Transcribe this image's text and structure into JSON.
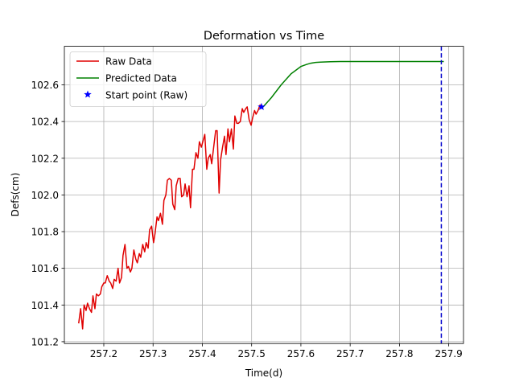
{
  "chart_data": {
    "type": "line",
    "title": "Deformation vs Time",
    "xlabel": "Time(d)",
    "ylabel": "Defs(cm)",
    "xlim": [
      257.12,
      257.93
    ],
    "ylim": [
      101.19,
      102.81
    ],
    "xticks": [
      257.2,
      257.3,
      257.4,
      257.5,
      257.6,
      257.7,
      257.8,
      257.9
    ],
    "xtick_labels": [
      "257.2",
      "257.3",
      "257.4",
      "257.5",
      "257.6",
      "257.7",
      "257.8",
      "257.9"
    ],
    "yticks": [
      101.2,
      101.4,
      101.6,
      101.8,
      102.0,
      102.2,
      102.4,
      102.6
    ],
    "ytick_labels": [
      "101.2",
      "101.4",
      "101.6",
      "101.8",
      "102.0",
      "102.2",
      "102.4",
      "102.6"
    ],
    "grid": true,
    "legend_position": "top-left",
    "series": [
      {
        "name": "Raw Data",
        "color": "#e00000",
        "style": "line",
        "x": [
          257.149,
          257.153,
          257.157,
          257.16,
          257.164,
          257.167,
          257.171,
          257.175,
          257.178,
          257.182,
          257.185,
          257.189,
          257.193,
          257.196,
          257.2,
          257.203,
          257.207,
          257.211,
          257.214,
          257.218,
          257.221,
          257.225,
          257.229,
          257.232,
          257.236,
          257.239,
          257.243,
          257.247,
          257.25,
          257.254,
          257.257,
          257.261,
          257.265,
          257.268,
          257.272,
          257.275,
          257.279,
          257.283,
          257.286,
          257.29,
          257.293,
          257.297,
          257.301,
          257.304,
          257.308,
          257.311,
          257.315,
          257.319,
          257.322,
          257.326,
          257.329,
          257.333,
          257.337,
          257.34,
          257.344,
          257.347,
          257.351,
          257.355,
          257.358,
          257.362,
          257.365,
          257.369,
          257.373,
          257.376,
          257.38,
          257.383,
          257.387,
          257.391,
          257.394,
          257.398,
          257.401,
          257.405,
          257.409,
          257.412,
          257.416,
          257.419,
          257.423,
          257.427,
          257.43,
          257.434,
          257.437,
          257.441,
          257.445,
          257.448,
          257.452,
          257.455,
          257.459,
          257.463,
          257.466,
          257.47,
          257.473,
          257.477,
          257.481,
          257.484,
          257.488,
          257.491,
          257.495,
          257.499,
          257.502,
          257.506,
          257.509,
          257.513,
          257.517,
          257.52
        ],
        "y": [
          101.3,
          101.38,
          101.27,
          101.4,
          101.37,
          101.41,
          101.38,
          101.36,
          101.45,
          101.38,
          101.46,
          101.45,
          101.46,
          101.5,
          101.52,
          101.52,
          101.56,
          101.53,
          101.52,
          101.49,
          101.54,
          101.53,
          101.6,
          101.52,
          101.55,
          101.67,
          101.73,
          101.6,
          101.61,
          101.58,
          101.6,
          101.7,
          101.65,
          101.63,
          101.68,
          101.66,
          101.73,
          101.69,
          101.74,
          101.71,
          101.81,
          101.83,
          101.74,
          101.79,
          101.88,
          101.86,
          101.9,
          101.84,
          101.97,
          102.0,
          102.08,
          102.09,
          102.08,
          101.95,
          101.92,
          102.05,
          102.09,
          102.09,
          101.99,
          102.0,
          102.06,
          101.99,
          102.05,
          101.93,
          102.14,
          102.14,
          102.23,
          102.2,
          102.29,
          102.26,
          102.29,
          102.33,
          102.14,
          102.2,
          102.22,
          102.17,
          102.26,
          102.35,
          102.35,
          102.01,
          102.19,
          102.26,
          102.32,
          102.22,
          102.36,
          102.29,
          102.36,
          102.25,
          102.43,
          102.39,
          102.39,
          102.4,
          102.47,
          102.45,
          102.47,
          102.48,
          102.41,
          102.38,
          102.42,
          102.46,
          102.44,
          102.46,
          102.49,
          102.48
        ]
      },
      {
        "name": "Predicted Data",
        "color": "#008000",
        "style": "line",
        "x": [
          257.52,
          257.53,
          257.54,
          257.55,
          257.56,
          257.57,
          257.58,
          257.59,
          257.6,
          257.61,
          257.62,
          257.63,
          257.64,
          257.65,
          257.66,
          257.68,
          257.7,
          257.75,
          257.8,
          257.85,
          257.89
        ],
        "y": [
          102.47,
          102.5,
          102.53,
          102.565,
          102.6,
          102.63,
          102.66,
          102.68,
          102.7,
          102.71,
          102.718,
          102.722,
          102.724,
          102.725,
          102.726,
          102.727,
          102.727,
          102.727,
          102.727,
          102.727,
          102.727
        ]
      },
      {
        "name": "Start point (Raw)",
        "color": "#0000ff",
        "style": "marker-star",
        "x": [
          257.52
        ],
        "y": [
          102.48
        ]
      }
    ],
    "vline": {
      "x": 257.885,
      "color": "#0000cc",
      "style": "dashed"
    }
  }
}
